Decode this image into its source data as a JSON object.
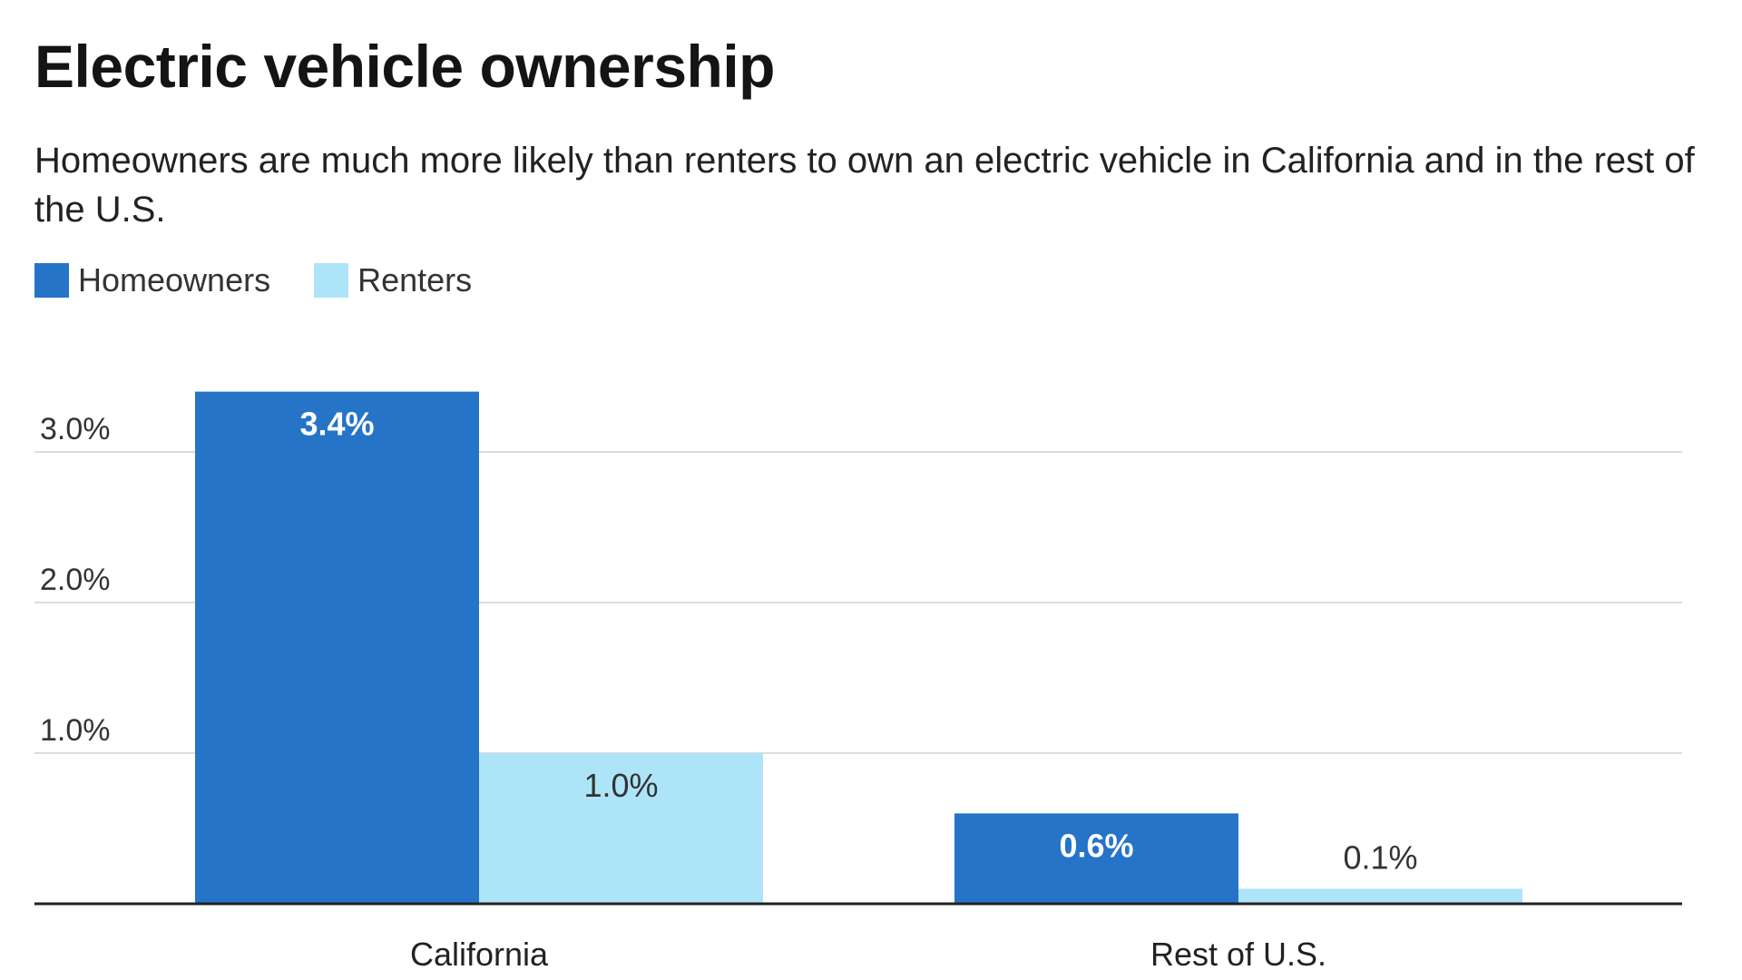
{
  "title": "Electric vehicle ownership",
  "subtitle": "Homeowners are much more likely than renters to own an electric vehicle in California and in the rest of the U.S.",
  "colors": {
    "homeowners": "#2574c7",
    "renters": "#aee4f7",
    "grid": "#dcdcdc",
    "axis": "#222222",
    "label_on_dark": "#ffffff",
    "label_on_light": "#333333"
  },
  "chart_data": {
    "type": "bar",
    "title": "Electric vehicle ownership",
    "xlabel": "",
    "ylabel": "",
    "categories": [
      "California",
      "Rest of U.S."
    ],
    "series": [
      {
        "name": "Homeowners",
        "values": [
          3.4,
          0.6
        ],
        "labels": [
          "3.4%",
          "0.6%"
        ]
      },
      {
        "name": "Renters",
        "values": [
          1.0,
          0.1
        ],
        "labels": [
          "1.0%",
          "0.1%"
        ]
      }
    ],
    "y_ticks": [
      1.0,
      2.0,
      3.0
    ],
    "y_tick_labels": [
      "1.0%",
      "2.0%",
      "3.0%"
    ],
    "ylim": [
      0,
      3.4
    ],
    "grid": true,
    "legend": "top-left"
  }
}
